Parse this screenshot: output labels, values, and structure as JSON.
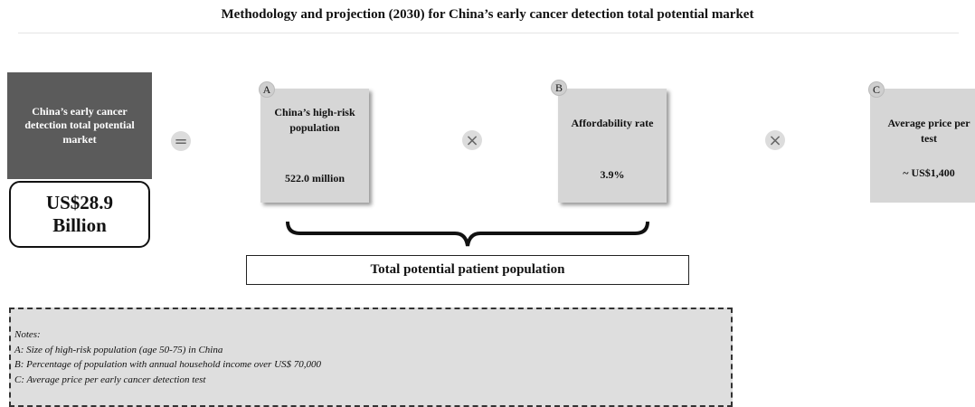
{
  "title": "Methodology and projection (2030) for China’s early cancer detection total potential market",
  "result": {
    "label": "China’s early cancer detection total potential market",
    "value": "US$28.9 Billion"
  },
  "operators": [
    "=",
    "×",
    "×"
  ],
  "factors": [
    {
      "letter": "A",
      "label": "China’s high-risk population",
      "value": "522.0 million"
    },
    {
      "letter": "B",
      "label": "Affordability rate",
      "value": "3.9%"
    },
    {
      "letter": "C",
      "label": "Average price per test",
      "value": "~ US$1,400"
    }
  ],
  "brace_label": "Total potential patient population",
  "notes": {
    "title": "Notes:",
    "lines": [
      "A: Size of high-risk population (age 50-75) in China",
      "B: Percentage of population with annual household income over US$ 70,000",
      "C: Average price per early cancer detection test"
    ]
  }
}
